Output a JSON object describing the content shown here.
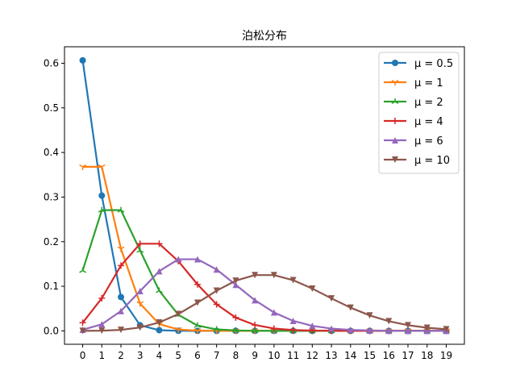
{
  "chart_data": {
    "type": "line",
    "title": "泊松分布",
    "xlabel": "",
    "ylabel": "",
    "xlim": [
      -0.95,
      19.95
    ],
    "ylim": [
      -0.03,
      0.637
    ],
    "x": [
      0,
      1,
      2,
      3,
      4,
      5,
      6,
      7,
      8,
      9,
      10,
      11,
      12,
      13,
      14,
      15,
      16,
      17,
      18,
      19
    ],
    "xticks": [
      "0",
      "1",
      "2",
      "3",
      "4",
      "5",
      "6",
      "7",
      "8",
      "9",
      "10",
      "11",
      "12",
      "13",
      "14",
      "15",
      "16",
      "17",
      "18",
      "19"
    ],
    "yticks": [
      0.0,
      0.1,
      0.2,
      0.3,
      0.4,
      0.5,
      0.6
    ],
    "ytick_labels": [
      "0.0",
      "0.1",
      "0.2",
      "0.3",
      "0.4",
      "0.5",
      "0.6"
    ],
    "legend_position": "top-right",
    "grid": false,
    "series": [
      {
        "name": "μ = 0.5",
        "color": "#1f77b4",
        "marker": "circle",
        "values": [
          0.6065,
          0.3033,
          0.0758,
          0.0126,
          0.0016,
          0.0002,
          0.0,
          0.0,
          0.0,
          0.0,
          0.0,
          0.0,
          0.0,
          0.0,
          0.0,
          0.0,
          0.0,
          0.0,
          0.0,
          0.0
        ]
      },
      {
        "name": "μ = 1",
        "color": "#ff7f0e",
        "marker": "tri-down",
        "values": [
          0.3679,
          0.3679,
          0.1839,
          0.0613,
          0.0153,
          0.0031,
          0.0005,
          0.0001,
          0.0,
          0.0,
          0.0,
          0.0,
          0.0,
          0.0,
          0.0,
          0.0,
          0.0,
          0.0,
          0.0,
          0.0
        ]
      },
      {
        "name": "μ = 2",
        "color": "#2ca02c",
        "marker": "tri-up",
        "values": [
          0.1353,
          0.2707,
          0.2707,
          0.1804,
          0.0902,
          0.0361,
          0.012,
          0.0034,
          0.0009,
          0.0002,
          0.0,
          0.0,
          0.0,
          0.0,
          0.0,
          0.0,
          0.0,
          0.0,
          0.0,
          0.0
        ]
      },
      {
        "name": "μ = 4",
        "color": "#d62728",
        "marker": "plus",
        "values": [
          0.0183,
          0.0733,
          0.1465,
          0.1954,
          0.1954,
          0.1563,
          0.1042,
          0.0595,
          0.0298,
          0.0132,
          0.0053,
          0.0019,
          0.0006,
          0.0002,
          0.0001,
          0.0,
          0.0,
          0.0,
          0.0,
          0.0
        ]
      },
      {
        "name": "μ = 6",
        "color": "#9467bd",
        "marker": "triangle-up",
        "values": [
          0.0025,
          0.0149,
          0.0446,
          0.0892,
          0.1339,
          0.1606,
          0.1606,
          0.1377,
          0.1033,
          0.0688,
          0.0413,
          0.0225,
          0.0113,
          0.0052,
          0.0022,
          0.0009,
          0.0003,
          0.0001,
          0.0,
          0.0
        ]
      },
      {
        "name": "μ = 10",
        "color": "#8c564b",
        "marker": "triangle-down",
        "values": [
          0.0,
          0.0005,
          0.0023,
          0.0076,
          0.0189,
          0.0378,
          0.0631,
          0.0901,
          0.1126,
          0.1251,
          0.1251,
          0.1137,
          0.0948,
          0.0729,
          0.0521,
          0.0347,
          0.0217,
          0.0128,
          0.0071,
          0.0037
        ]
      }
    ]
  }
}
